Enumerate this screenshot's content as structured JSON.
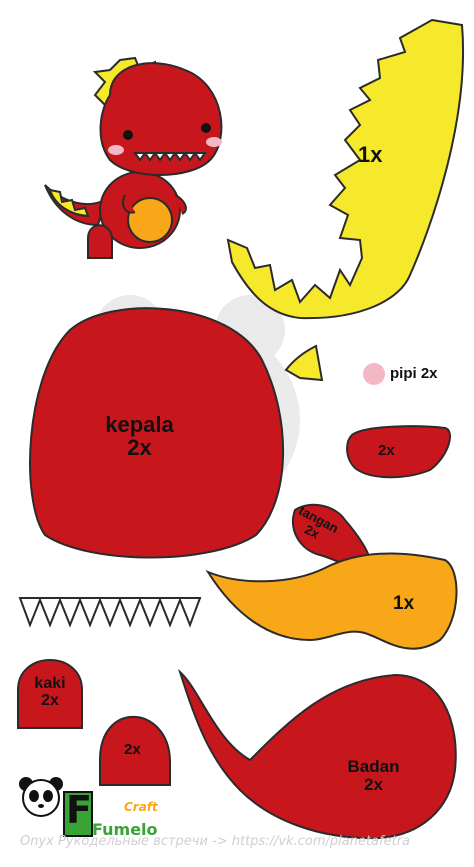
{
  "labels": {
    "tail": "1x",
    "cheek": "pipi 2x",
    "head": "kepala\n2x",
    "hand_top": "2x",
    "hand": "tangan\n2x",
    "spike_tail": "1x",
    "leg": "kaki\n2x",
    "foot": "2x",
    "body": "Badan\n2x"
  },
  "footer": {
    "watermark": "Onyx Рукодельные встречи -> https://vk.com/planetafetra"
  },
  "logo": {
    "letter": "F",
    "word": "Fumelo",
    "craft": "Craft"
  },
  "colors": {
    "red": "#c8161d",
    "yellow": "#f6e82b",
    "orange": "#f7a717",
    "pink": "#f3b8c6",
    "outline": "#2b2b2b"
  }
}
